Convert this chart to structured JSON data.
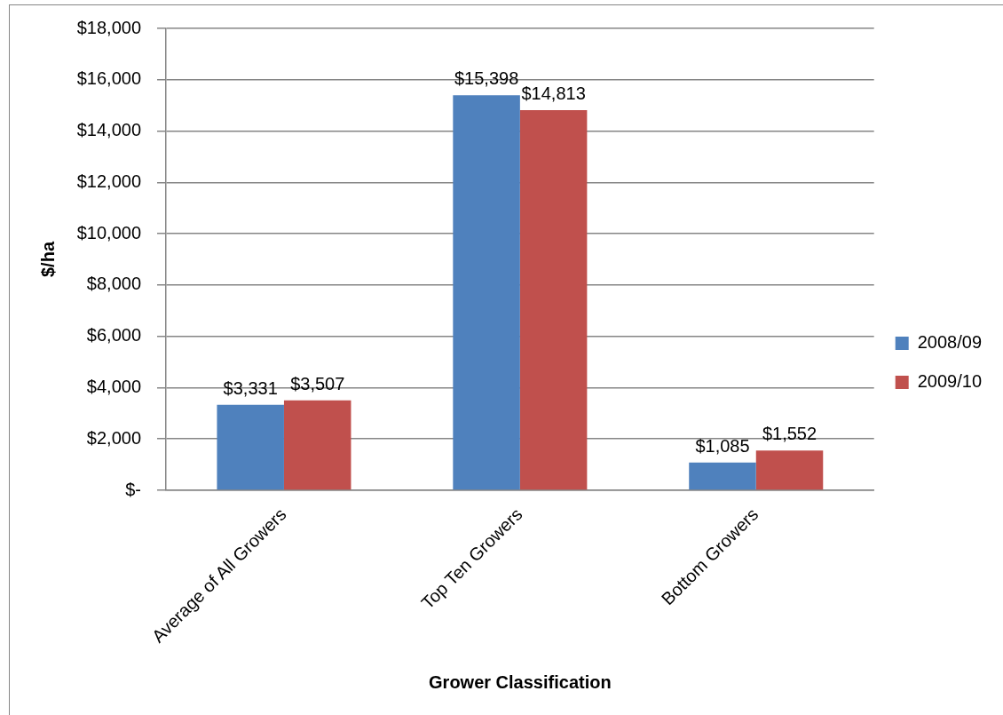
{
  "chart_data": {
    "type": "bar",
    "xlabel": "Grower Classification",
    "ylabel": "$/ha",
    "categories": [
      "Average of All Growers",
      "Top Ten Growers",
      "Bottom Growers"
    ],
    "series": [
      {
        "name": "2008/09",
        "color": "#4f81bd",
        "values": [
          3331,
          15398,
          1085
        ],
        "value_labels": [
          "$3,331",
          "$15,398",
          "$1,085"
        ]
      },
      {
        "name": "2009/10",
        "color": "#c0504d",
        "values": [
          3507,
          14813,
          1552
        ],
        "value_labels": [
          "$3,507",
          "$14,813",
          "$1,552"
        ]
      }
    ],
    "ylim": [
      0,
      18000
    ],
    "yticks": [
      {
        "value": 0,
        "label": "$-"
      },
      {
        "value": 2000,
        "label": "$2,000"
      },
      {
        "value": 4000,
        "label": "$4,000"
      },
      {
        "value": 6000,
        "label": "$6,000"
      },
      {
        "value": 8000,
        "label": "$8,000"
      },
      {
        "value": 10000,
        "label": "$10,000"
      },
      {
        "value": 12000,
        "label": "$12,000"
      },
      {
        "value": 14000,
        "label": "$14,000"
      },
      {
        "value": 16000,
        "label": "$16,000"
      },
      {
        "value": 18000,
        "label": "$18,000"
      }
    ],
    "grid": "y",
    "legend": "right"
  }
}
